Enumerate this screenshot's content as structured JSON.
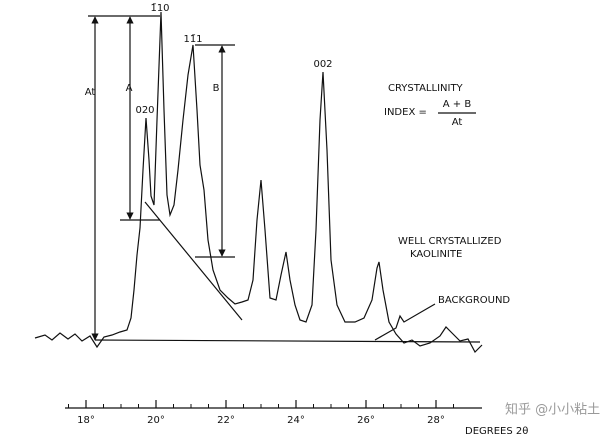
{
  "peak_labels": [
    "020",
    "1̄10",
    "11̄1",
    "002"
  ],
  "measure_labels": {
    "a_total": "At",
    "a": "A",
    "b": "B"
  },
  "formula": {
    "title": "CRYSTALLINITY",
    "lhs": "INDEX =",
    "numerator": "A + B",
    "denominator": "At"
  },
  "sample": [
    "WELL CRYSTALLIZED",
    "KAOLINITE"
  ],
  "background_label": "BACKGROUND",
  "axis": {
    "ticks": [
      "18°",
      "20°",
      "22°",
      "24°",
      "26°",
      "28°"
    ],
    "label": "DEGREES 2θ"
  },
  "watermark": "知乎 @小小粘土"
}
